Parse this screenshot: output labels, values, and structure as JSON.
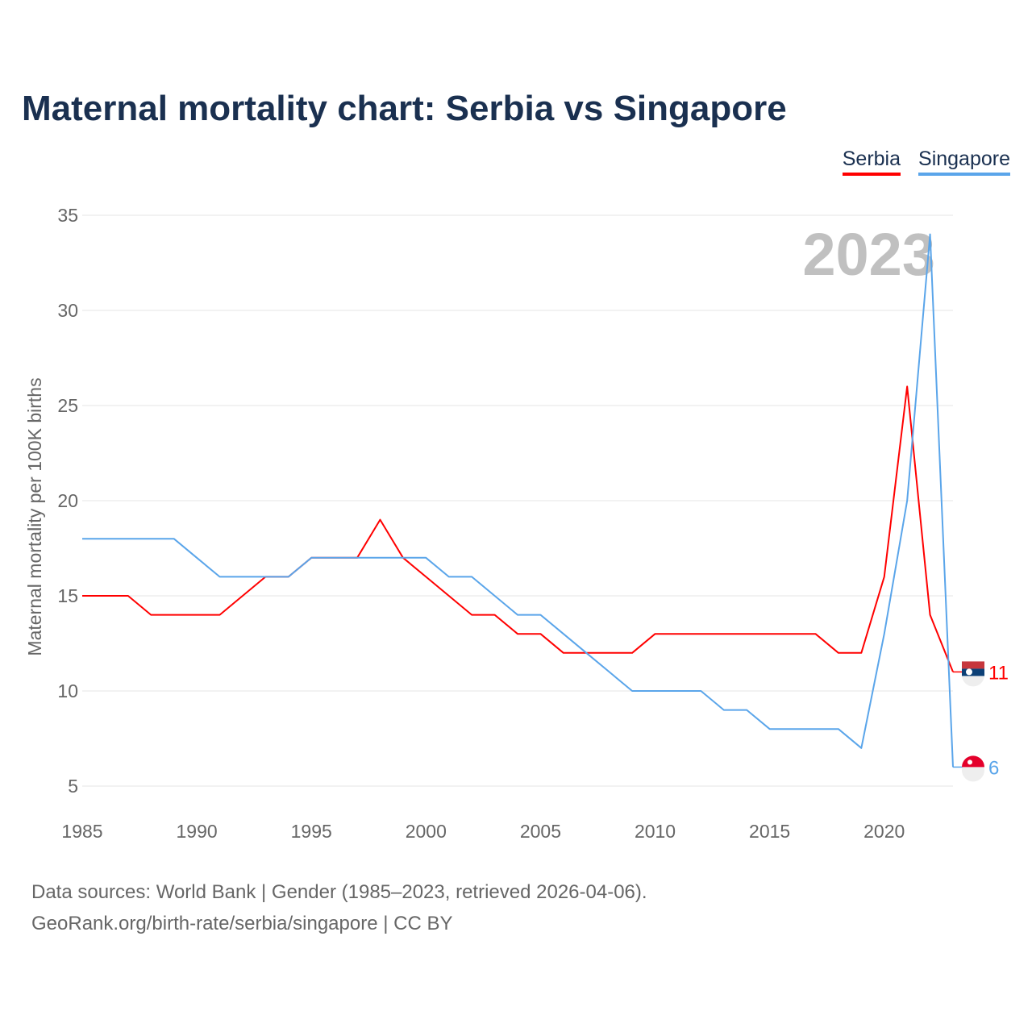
{
  "chart_data": {
    "type": "line",
    "title": "Maternal mortality chart: Serbia vs Singapore",
    "xlabel": "",
    "ylabel": "Maternal mortality per 100K births",
    "xlim": [
      1985,
      2023
    ],
    "ylim": [
      5,
      35
    ],
    "yticks": [
      "5",
      "10",
      "15",
      "20",
      "25",
      "30",
      "35"
    ],
    "xticks": [
      "1985",
      "1990",
      "1995",
      "2000",
      "2005",
      "2010",
      "2015",
      "2020"
    ],
    "year_label": "2023",
    "grid": true,
    "legend_position": "top-right",
    "x": [
      1985,
      1986,
      1987,
      1988,
      1989,
      1990,
      1991,
      1992,
      1993,
      1994,
      1995,
      1996,
      1997,
      1998,
      1999,
      2000,
      2001,
      2002,
      2003,
      2004,
      2005,
      2006,
      2007,
      2008,
      2009,
      2010,
      2011,
      2012,
      2013,
      2014,
      2015,
      2016,
      2017,
      2018,
      2019,
      2020,
      2021,
      2022,
      2023
    ],
    "series": [
      {
        "name": "Serbia",
        "color": "#ff0000",
        "end_label": "11",
        "values": [
          15,
          15,
          15,
          14,
          14,
          14,
          14,
          15,
          16,
          16,
          17,
          17,
          17,
          19,
          17,
          16,
          15,
          14,
          14,
          13,
          13,
          12,
          12,
          12,
          12,
          13,
          13,
          13,
          13,
          13,
          13,
          13,
          13,
          12,
          12,
          16,
          26,
          14,
          11
        ]
      },
      {
        "name": "Singapore",
        "color": "#5aa5ea",
        "end_label": "6",
        "values": [
          18,
          18,
          18,
          18,
          18,
          17,
          16,
          16,
          16,
          16,
          17,
          17,
          17,
          17,
          17,
          17,
          16,
          16,
          15,
          14,
          14,
          13,
          12,
          11,
          10,
          10,
          10,
          10,
          9,
          9,
          8,
          8,
          8,
          8,
          7,
          13,
          20,
          34,
          6
        ]
      }
    ]
  },
  "footer": {
    "line1": "Data sources: World Bank | Gender (1985–2023, retrieved 2026-04-06).",
    "line2": "GeoRank.org/birth-rate/serbia/singapore | CC BY"
  }
}
